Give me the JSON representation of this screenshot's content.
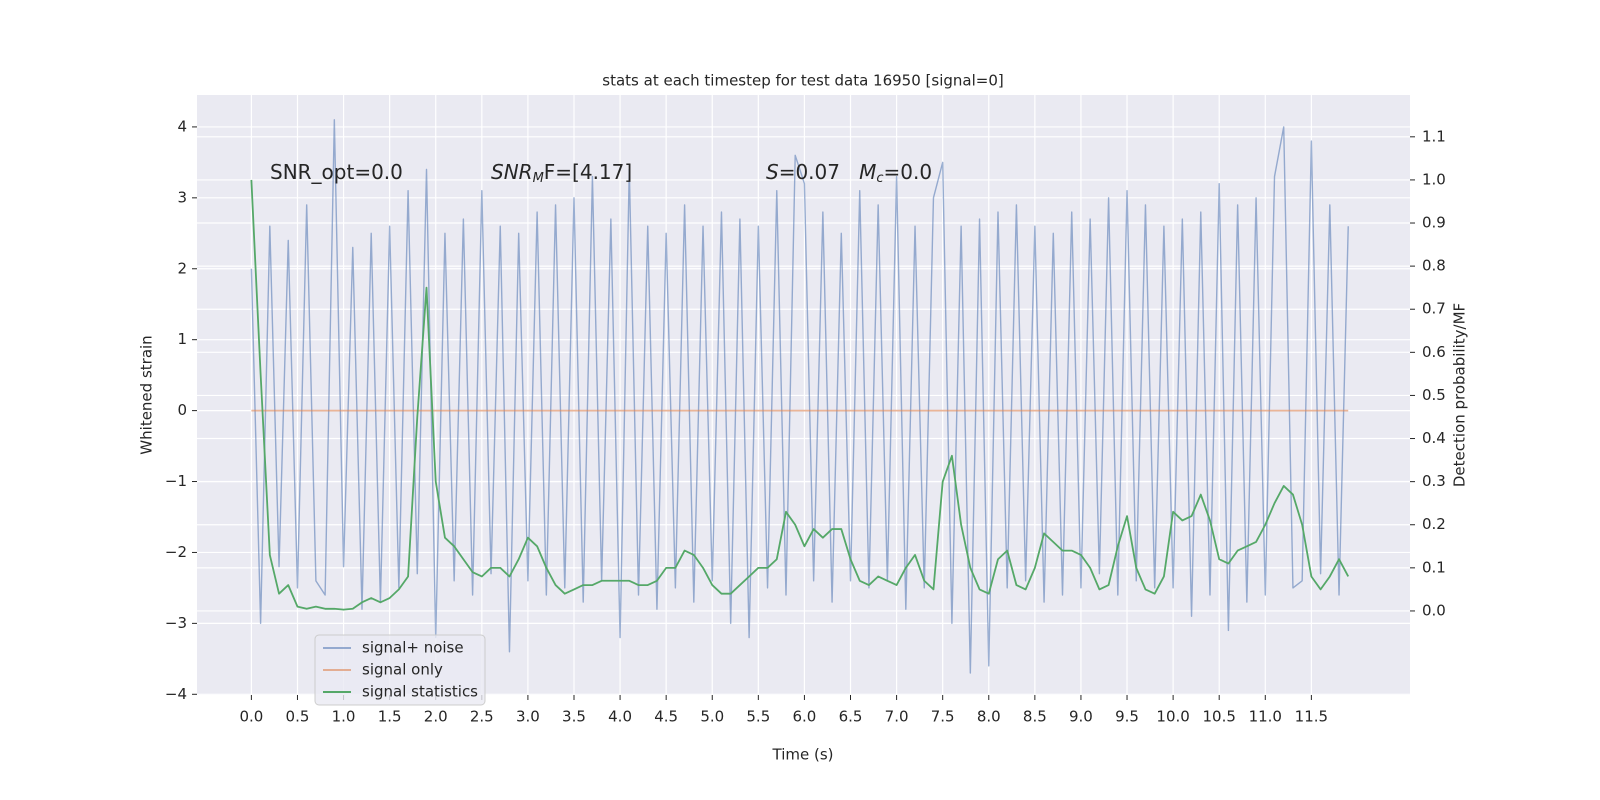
{
  "chart_data": {
    "type": "line",
    "title": "stats at each timestep for test data 16950 [signal=0]",
    "xlabel": "Time (s)",
    "ylabel": "Whitened strain",
    "y2label": "Detection probability/MF",
    "annotations": [
      [
        "SNR_opt=0.0"
      ],
      [
        "SNR",
        "M",
        "F=[4.17]"
      ],
      [
        "S",
        "=0.07   ",
        "M",
        "c",
        "=0.0"
      ]
    ],
    "grid": true,
    "legend_loc": "lower left",
    "xlim": [
      -0.59,
      12.57
    ],
    "ylim": [
      -4.01,
      4.45
    ],
    "y2lim": [
      -0.195,
      1.197
    ],
    "xticks": [
      {
        "value": 0,
        "label": "0.0"
      },
      {
        "value": 0.5,
        "label": "0.5"
      },
      {
        "value": 1,
        "label": "1.0"
      },
      {
        "value": 1.5,
        "label": "1.5"
      },
      {
        "value": 2,
        "label": "2.0"
      },
      {
        "value": 2.5,
        "label": "2.5"
      },
      {
        "value": 3,
        "label": "3.0"
      },
      {
        "value": 3.5,
        "label": "3.5"
      },
      {
        "value": 4,
        "label": "4.0"
      },
      {
        "value": 4.5,
        "label": "4.5"
      },
      {
        "value": 5,
        "label": "5.0"
      },
      {
        "value": 5.5,
        "label": "5.5"
      },
      {
        "value": 6,
        "label": "6.0"
      },
      {
        "value": 6.5,
        "label": "6.5"
      },
      {
        "value": 7,
        "label": "7.0"
      },
      {
        "value": 7.5,
        "label": "7.5"
      },
      {
        "value": 8,
        "label": "8.0"
      },
      {
        "value": 8.5,
        "label": "8.5"
      },
      {
        "value": 9,
        "label": "9.0"
      },
      {
        "value": 9.5,
        "label": "9.5"
      },
      {
        "value": 10,
        "label": "10.0"
      },
      {
        "value": 10.5,
        "label": "10.5"
      },
      {
        "value": 11,
        "label": "11.0"
      },
      {
        "value": 11.5,
        "label": "11.5"
      }
    ],
    "yticks": [
      {
        "value": -4,
        "label": "−4"
      },
      {
        "value": -3,
        "label": "−3"
      },
      {
        "value": -2,
        "label": "−2"
      },
      {
        "value": -1,
        "label": "−1"
      },
      0,
      1,
      2,
      3,
      4
    ],
    "y2ticks": [
      {
        "value": 0,
        "label": "0.0"
      },
      {
        "value": 0.1,
        "label": "0.1"
      },
      {
        "value": 0.2,
        "label": "0.2"
      },
      {
        "value": 0.3,
        "label": "0.3"
      },
      {
        "value": 0.4,
        "label": "0.4"
      },
      {
        "value": 0.5,
        "label": "0.5"
      },
      {
        "value": 0.6,
        "label": "0.6"
      },
      {
        "value": 0.7,
        "label": "0.7"
      },
      {
        "value": 0.8,
        "label": "0.8"
      },
      {
        "value": 0.9,
        "label": "0.9"
      },
      {
        "value": 1,
        "label": "1.0"
      },
      {
        "value": 1.1,
        "label": "1.1"
      }
    ],
    "x": [
      0,
      0.1,
      0.2,
      0.3,
      0.4,
      0.5,
      0.6,
      0.7,
      0.8,
      0.9,
      1,
      1.1,
      1.2,
      1.3,
      1.4,
      1.5,
      1.6,
      1.7,
      1.8,
      1.9,
      2,
      2.1,
      2.2,
      2.3,
      2.4,
      2.5,
      2.6,
      2.7,
      2.8,
      2.9,
      3,
      3.1,
      3.2,
      3.3,
      3.4,
      3.5,
      3.6,
      3.7,
      3.8,
      3.9,
      4,
      4.1,
      4.2,
      4.3,
      4.4,
      4.5,
      4.6,
      4.7,
      4.8,
      4.9,
      5,
      5.1,
      5.2,
      5.3,
      5.4,
      5.5,
      5.6,
      5.7,
      5.8,
      5.9,
      6,
      6.1,
      6.2,
      6.3,
      6.4,
      6.5,
      6.6,
      6.7,
      6.8,
      6.9,
      7,
      7.1,
      7.2,
      7.3,
      7.4,
      7.5,
      7.6,
      7.7,
      7.8,
      7.9,
      8,
      8.1,
      8.2,
      8.3,
      8.4,
      8.5,
      8.6,
      8.7,
      8.8,
      8.9,
      9,
      9.1,
      9.2,
      9.3,
      9.4,
      9.5,
      9.6,
      9.7,
      9.8,
      9.9,
      10,
      10.1,
      10.2,
      10.3,
      10.4,
      10.5,
      10.6,
      10.7,
      10.8,
      10.9,
      11,
      11.1,
      11.2,
      11.3,
      11.4,
      11.5,
      11.6,
      11.7,
      11.8,
      11.9
    ],
    "series": [
      {
        "name": "signal+ noise",
        "color": "#4c72b0",
        "opacity": 0.55,
        "values": [
          2.0,
          -3.0,
          2.6,
          -2.2,
          2.4,
          -2.5,
          2.9,
          -2.4,
          -2.6,
          4.1,
          -2.2,
          2.3,
          -2.8,
          2.5,
          -2.7,
          2.6,
          -2.5,
          3.1,
          -2.3,
          3.4,
          -3.2,
          2.5,
          -2.4,
          2.7,
          -2.6,
          3.1,
          -2.3,
          2.6,
          -3.4,
          2.5,
          -2.4,
          2.8,
          -2.6,
          2.9,
          -2.5,
          3.0,
          -2.7,
          3.3,
          -2.4,
          2.7,
          -3.2,
          3.4,
          -2.6,
          2.6,
          -2.8,
          2.5,
          -2.5,
          2.9,
          -2.7,
          2.6,
          -2.4,
          2.8,
          -3.0,
          2.7,
          -3.2,
          2.6,
          -2.5,
          3.1,
          -2.6,
          3.6,
          3.2,
          -2.4,
          2.8,
          -2.7,
          2.5,
          -2.4,
          3.1,
          -2.5,
          2.9,
          -2.4,
          3.3,
          -2.8,
          2.6,
          -2.5,
          3.0,
          3.5,
          -3.0,
          2.6,
          -3.7,
          2.7,
          -3.6,
          2.8,
          -2.5,
          2.9,
          -2.4,
          2.6,
          -2.7,
          2.5,
          -2.6,
          2.8,
          -2.5,
          2.7,
          -2.3,
          3.0,
          -2.6,
          3.1,
          -2.4,
          2.9,
          -2.5,
          2.6,
          -2.5,
          2.7,
          -2.9,
          2.8,
          -2.6,
          3.2,
          -3.1,
          2.9,
          -2.7,
          3.0,
          -2.6,
          3.3,
          4.0,
          -2.5,
          -2.4,
          3.8,
          -2.3,
          2.9,
          -2.6,
          2.6
        ]
      },
      {
        "name": "signal only",
        "color": "#dd8452",
        "opacity": 0.6,
        "values": [
          0,
          0,
          0,
          0,
          0,
          0,
          0,
          0,
          0,
          0,
          0,
          0,
          0,
          0,
          0,
          0,
          0,
          0,
          0,
          0,
          0,
          0,
          0,
          0,
          0,
          0,
          0,
          0,
          0,
          0,
          0,
          0,
          0,
          0,
          0,
          0,
          0,
          0,
          0,
          0,
          0,
          0,
          0,
          0,
          0,
          0,
          0,
          0,
          0,
          0,
          0,
          0,
          0,
          0,
          0,
          0,
          0,
          0,
          0,
          0,
          0,
          0,
          0,
          0,
          0,
          0,
          0,
          0,
          0,
          0,
          0,
          0,
          0,
          0,
          0,
          0,
          0,
          0,
          0,
          0,
          0,
          0,
          0,
          0,
          0,
          0,
          0,
          0,
          0,
          0,
          0,
          0,
          0,
          0,
          0,
          0,
          0,
          0,
          0,
          0,
          0,
          0,
          0,
          0,
          0,
          0,
          0,
          0,
          0,
          0,
          0,
          0,
          0,
          0,
          0,
          0,
          0,
          0,
          0,
          0
        ]
      },
      {
        "name": "signal statistics",
        "color": "#55a868",
        "opacity": 1,
        "axis": "y2",
        "values": [
          1.0,
          0.55,
          0.13,
          0.04,
          0.06,
          0.01,
          0.005,
          0.01,
          0.005,
          0.005,
          0.003,
          0.005,
          0.02,
          0.03,
          0.02,
          0.03,
          0.05,
          0.08,
          0.45,
          0.75,
          0.3,
          0.17,
          0.15,
          0.12,
          0.09,
          0.08,
          0.1,
          0.1,
          0.08,
          0.12,
          0.17,
          0.15,
          0.1,
          0.06,
          0.04,
          0.05,
          0.06,
          0.06,
          0.07,
          0.07,
          0.07,
          0.07,
          0.06,
          0.06,
          0.07,
          0.1,
          0.1,
          0.14,
          0.13,
          0.1,
          0.06,
          0.04,
          0.04,
          0.06,
          0.08,
          0.1,
          0.1,
          0.12,
          0.23,
          0.2,
          0.15,
          0.19,
          0.17,
          0.19,
          0.19,
          0.12,
          0.07,
          0.06,
          0.08,
          0.07,
          0.06,
          0.1,
          0.13,
          0.07,
          0.05,
          0.3,
          0.36,
          0.2,
          0.1,
          0.05,
          0.04,
          0.12,
          0.14,
          0.06,
          0.05,
          0.1,
          0.18,
          0.16,
          0.14,
          0.14,
          0.13,
          0.1,
          0.05,
          0.06,
          0.15,
          0.22,
          0.1,
          0.05,
          0.04,
          0.08,
          0.23,
          0.21,
          0.22,
          0.27,
          0.21,
          0.12,
          0.11,
          0.14,
          0.15,
          0.16,
          0.2,
          0.25,
          0.29,
          0.27,
          0.2,
          0.08,
          0.05,
          0.08,
          0.12,
          0.08
        ]
      }
    ]
  }
}
